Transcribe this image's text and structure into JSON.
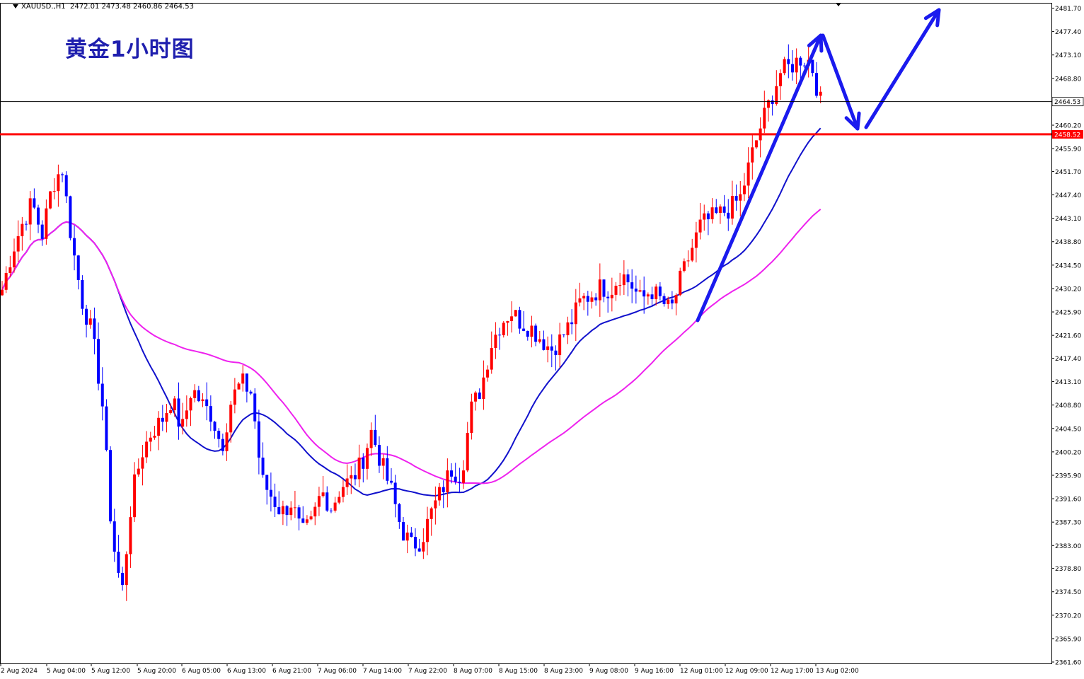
{
  "header": {
    "symbol": "XAUUSD.,H1",
    "ohlc": "2472.01 2473.48 2460.86 2464.53"
  },
  "title": "黄金1小时图",
  "colors": {
    "bull": "#ff0000",
    "bear": "#0000ff",
    "ma_fast": "#1111cc",
    "ma_slow": "#ee22ee",
    "arrow": "#1a1aee",
    "support": "#ff0000"
  },
  "chart_data": {
    "type": "candlestick",
    "y_range": [
      2361.6,
      2481.7
    ],
    "y_ticks": [
      "2481.70",
      "2477.40",
      "2473.10",
      "2468.80",
      "2464.53",
      "2460.20",
      "2458.52",
      "2455.90",
      "2451.70",
      "2447.40",
      "2443.10",
      "2438.80",
      "2434.50",
      "2430.20",
      "2425.90",
      "2421.60",
      "2417.40",
      "2413.10",
      "2408.80",
      "2404.50",
      "2400.20",
      "2395.90",
      "2391.60",
      "2387.30",
      "2383.00",
      "2378.80",
      "2374.50",
      "2370.20",
      "2365.90",
      "2361.60"
    ],
    "current_price": "2464.53",
    "support_level": "2458.52",
    "x_labels": [
      "2 Aug 2024",
      "5 Aug 04:00",
      "5 Aug 12:00",
      "5 Aug 20:00",
      "6 Aug 05:00",
      "6 Aug 13:00",
      "6 Aug 21:00",
      "7 Aug 06:00",
      "7 Aug 14:00",
      "7 Aug 22:00",
      "8 Aug 07:00",
      "8 Aug 15:00",
      "8 Aug 23:00",
      "9 Aug 08:00",
      "9 Aug 16:00",
      "12 Aug 01:00",
      "12 Aug 09:00",
      "12 Aug 17:00",
      "13 Aug 02:00"
    ],
    "close_path": [
      2430.0,
      2437.0,
      2442.0,
      2446.0,
      2440.0,
      2449.0,
      2452.5,
      2438.5,
      2428.0,
      2422.0,
      2410.0,
      2385.0,
      2374.0,
      2392.0,
      2400.0,
      2404.0,
      2406.0,
      2410.0,
      2404.0,
      2412.0,
      2409.0,
      2407.0,
      2401.0,
      2410.0,
      2413.0,
      2411.0,
      2395.0,
      2392.0,
      2389.0,
      2391.0,
      2385.0,
      2387.0,
      2393.0,
      2390.0,
      2394.0,
      2395.0,
      2398.0,
      2404.0,
      2398.0,
      2393.0,
      2386.0,
      2383.0,
      2384.0,
      2389.0,
      2393.0,
      2397.0,
      2396.0,
      2408.0,
      2412.0,
      2420.0,
      2424.0,
      2426.0,
      2424.0,
      2423.0,
      2421.0,
      2419.0,
      2421.0,
      2424.0,
      2428.0,
      2429.0,
      2430.5,
      2430.0,
      2433.0,
      2431.0,
      2428.0,
      2430.0,
      2428.0,
      2426.0,
      2432.0,
      2437.0,
      2442.0,
      2443.0,
      2444.0,
      2445.0,
      2447.0,
      2454.0,
      2460.0,
      2465.0,
      2470.0,
      2471.0,
      2472.5,
      2472.0,
      2464.5
    ]
  },
  "annotations": {
    "arrows": "blue trend arrows: up, down to support, up"
  }
}
